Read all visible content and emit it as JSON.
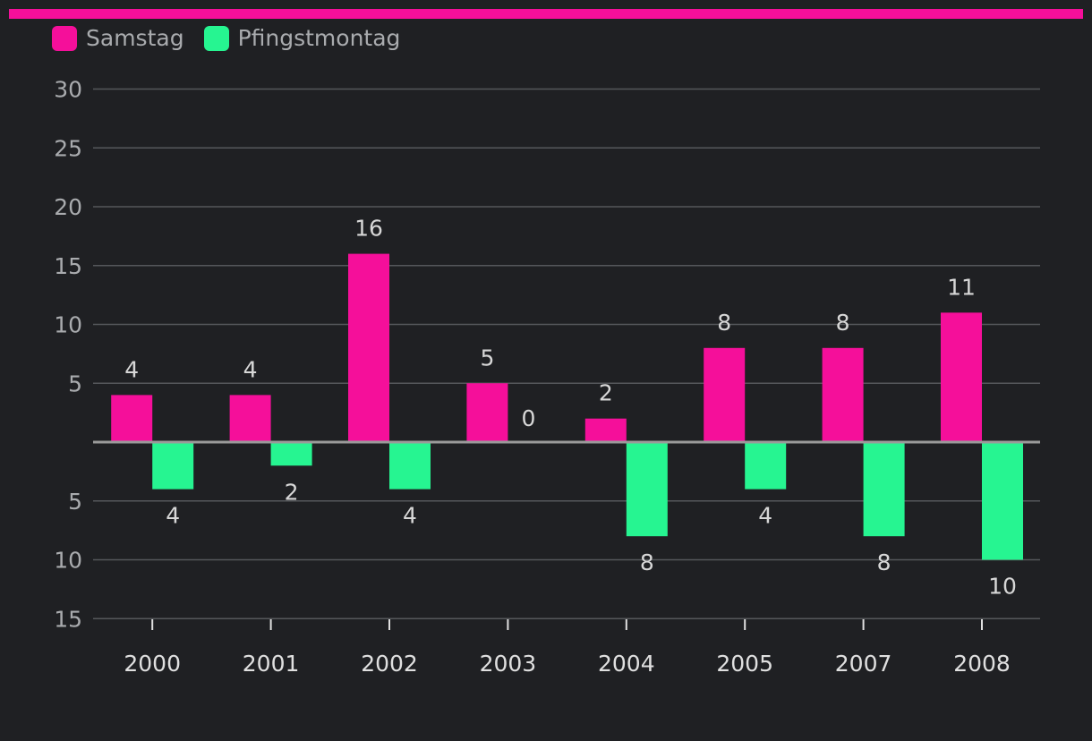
{
  "colors": {
    "background": "#1f2023",
    "accent": "#f50f9a",
    "samstag": "#f50f9a",
    "pfingstmontag": "#26f591",
    "grid": "#55575b",
    "baseline": "#9a9a9a"
  },
  "legend": [
    {
      "label": "Samstag",
      "color": "#f50f9a"
    },
    {
      "label": "Pfingstmontag",
      "color": "#26f591"
    }
  ],
  "chart_data": {
    "type": "bar",
    "orientation": "diverging",
    "categories": [
      "2000",
      "2001",
      "2002",
      "2003",
      "2004",
      "2005",
      "2007",
      "2008"
    ],
    "series": [
      {
        "name": "Samstag",
        "direction": "up",
        "values": [
          4,
          4,
          16,
          5,
          2,
          8,
          8,
          11
        ]
      },
      {
        "name": "Pfingstmontag",
        "direction": "down",
        "values": [
          4,
          2,
          4,
          0,
          8,
          4,
          8,
          10
        ]
      }
    ],
    "y_upper": {
      "range": [
        0,
        30
      ],
      "ticks": [
        5,
        10,
        15,
        20,
        25,
        30
      ]
    },
    "y_lower": {
      "range": [
        0,
        15
      ],
      "ticks": [
        5,
        10,
        15
      ]
    },
    "grid": true,
    "legend_position": "top-left",
    "data_labels": true
  }
}
